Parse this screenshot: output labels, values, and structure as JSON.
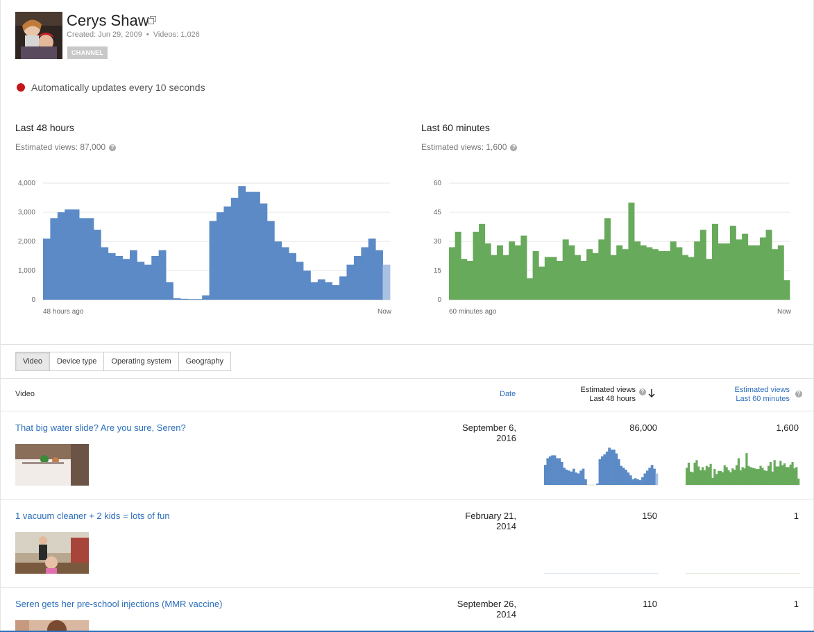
{
  "channel": {
    "name": "Cerys Shaw",
    "created": "Created: Jun 29, 2009",
    "videos": "Videos: 1,026",
    "badge": "CHANNEL"
  },
  "live": {
    "text": "Automatically updates every 10 seconds",
    "color": "#c4161c"
  },
  "charts": {
    "left": {
      "title": "Last 48 hours",
      "subtitle": "Estimated views: 87,000",
      "x_start": "48 hours ago",
      "x_end": "Now"
    },
    "right": {
      "title": "Last 60 minutes",
      "subtitle": "Estimated views: 1,600",
      "x_start": "60 minutes ago",
      "x_end": "Now"
    }
  },
  "chart_data": [
    {
      "type": "bar",
      "title": "Last 48 hours",
      "xlabel": "",
      "ylabel": "",
      "x_tick_labels": [
        "48 hours ago",
        "Now"
      ],
      "y_ticks": [
        "0",
        "1,000",
        "2,000",
        "3,000",
        "4,000"
      ],
      "ylim": [
        0,
        4000
      ],
      "grid": true,
      "color": "#5b8ac6",
      "partial_color": "#a9c1e3",
      "values": [
        2100,
        2800,
        3000,
        3100,
        3100,
        2800,
        2800,
        2400,
        1800,
        1600,
        1500,
        1400,
        1700,
        1300,
        1200,
        1500,
        1700,
        600,
        50,
        30,
        20,
        20,
        150,
        2700,
        3000,
        3200,
        3500,
        3900,
        3700,
        3700,
        3300,
        2700,
        2000,
        1800,
        1600,
        1300,
        1000,
        600,
        700,
        600,
        500,
        800,
        1200,
        1500,
        1800,
        2100,
        1700,
        1200
      ]
    },
    {
      "type": "bar",
      "title": "Last 60 minutes",
      "xlabel": "",
      "ylabel": "",
      "x_tick_labels": [
        "60 minutes ago",
        "Now"
      ],
      "y_ticks": [
        "0",
        "15",
        "30",
        "45",
        "60"
      ],
      "ylim": [
        0,
        60
      ],
      "grid": true,
      "color": "#67aa5b",
      "values": [
        27,
        35,
        21,
        20,
        35,
        39,
        29,
        23,
        28,
        23,
        30,
        28,
        33,
        11,
        25,
        17,
        22,
        22,
        20,
        31,
        28,
        23,
        20,
        26,
        24,
        31,
        42,
        23,
        28,
        26,
        50,
        30,
        28,
        27,
        26,
        25,
        25,
        30,
        27,
        23,
        22,
        30,
        36,
        21,
        39,
        29,
        29,
        38,
        31,
        34,
        28,
        28,
        32,
        36,
        26,
        28,
        10
      ]
    }
  ],
  "tabs": [
    "Video",
    "Device type",
    "Operating system",
    "Geography"
  ],
  "table": {
    "headers": {
      "video": "Video",
      "date": "Date",
      "views48_line1": "Estimated views",
      "views48_line2": "Last 48 hours",
      "views60_line1": "Estimated views",
      "views60_line2": "Last 60 minutes"
    },
    "rows": [
      {
        "title": "That big water slide? Are you sure, Seren?",
        "date_line1": "September 6,",
        "date_line2": "2016",
        "views48": "86,000",
        "views60": "1,600"
      },
      {
        "title": "1 vacuum cleaner + 2 kids = lots of fun",
        "date_line1": "February 21,",
        "date_line2": "2014",
        "views48": "150",
        "views60": "1"
      },
      {
        "title": "Seren gets her pre-school injections (MMR vaccine)",
        "date_line1": "September 26,",
        "date_line2": "2014",
        "views48": "110",
        "views60": "1"
      }
    ]
  }
}
